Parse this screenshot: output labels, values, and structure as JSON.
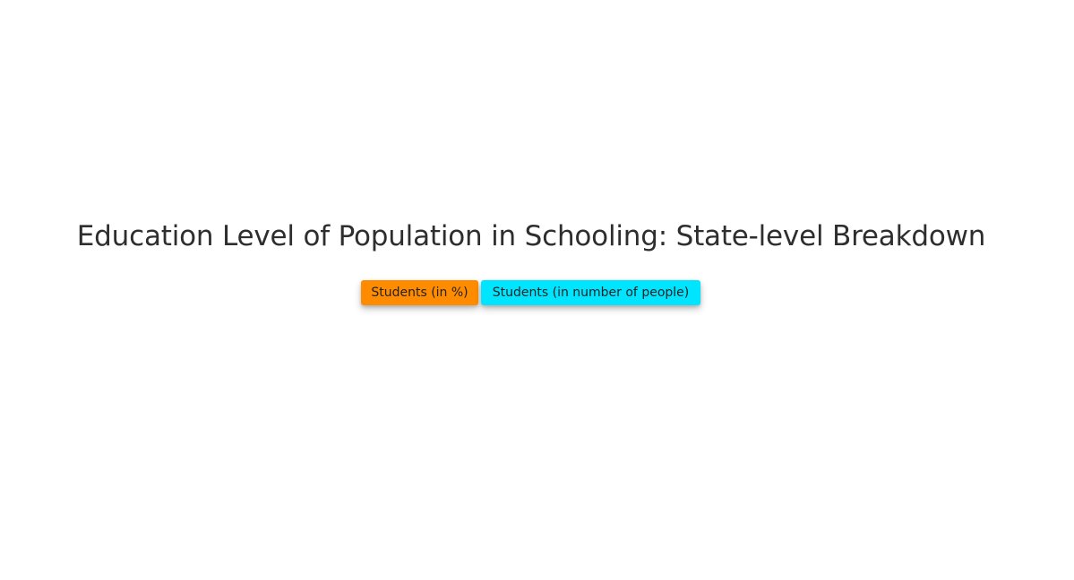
{
  "header": {
    "title": "Education Level of Population in Schooling: State-level Breakdown"
  },
  "toggle_buttons": {
    "percent_label": "Students (in %)",
    "count_label": "Students (in number of people)"
  },
  "colors": {
    "percent_button": "#ff8c00",
    "count_button": "#00e5ff",
    "title_text": "#2e2e2e",
    "background": "#ffffff"
  }
}
